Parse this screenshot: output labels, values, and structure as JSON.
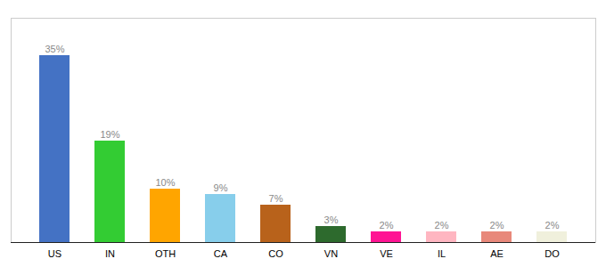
{
  "chart_data": {
    "type": "bar",
    "categories": [
      "US",
      "IN",
      "OTH",
      "CA",
      "CO",
      "VN",
      "VE",
      "IL",
      "AE",
      "DO"
    ],
    "values": [
      35,
      19,
      10,
      9,
      7,
      3,
      2,
      2,
      2,
      2
    ],
    "value_labels": [
      "35%",
      "19%",
      "10%",
      "9%",
      "7%",
      "3%",
      "2%",
      "2%",
      "2%",
      "2%"
    ],
    "colors": [
      "#4472C4",
      "#33CC33",
      "#FFA500",
      "#87CEEB",
      "#B8621B",
      "#2D6A2D",
      "#FF1493",
      "#FFB6C1",
      "#E8887A",
      "#F0F0DC"
    ],
    "ylim": [
      0,
      42
    ],
    "data_labels": true,
    "tick_labels": "x",
    "grid": false
  }
}
